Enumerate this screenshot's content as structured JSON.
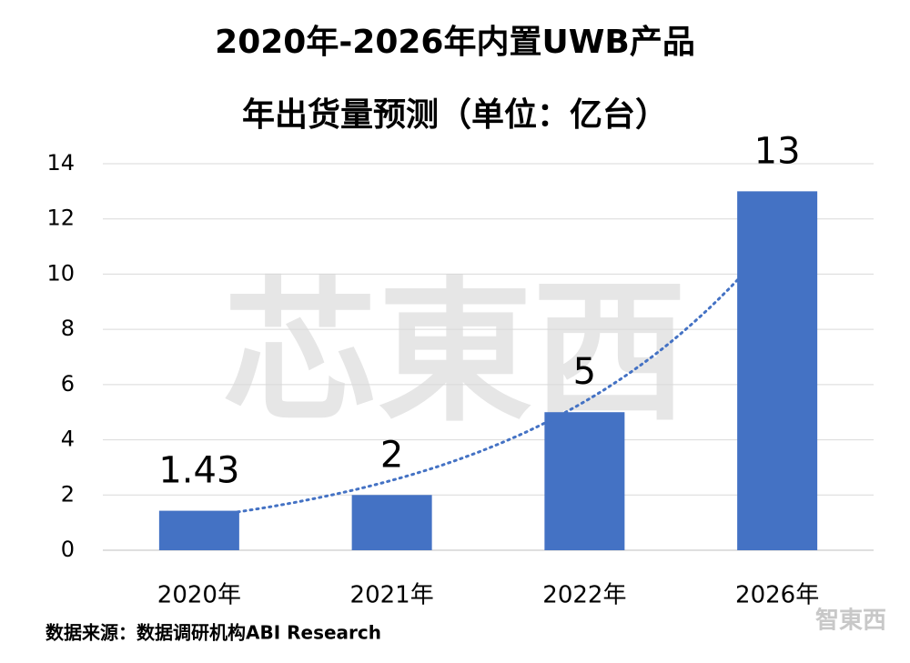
{
  "chart_data": {
    "type": "bar",
    "title_lines": [
      "2020年-2026年内置UWB产品",
      "年出货量预测（单位：亿台）"
    ],
    "categories": [
      "2020年",
      "2021年",
      "2022年",
      "2026年"
    ],
    "values": [
      1.43,
      2,
      5,
      13
    ],
    "color": "#4472c4",
    "trendline": "exponential",
    "ylim": [
      0,
      14
    ],
    "yticks": [
      0,
      2,
      4,
      6,
      8,
      10,
      12,
      14
    ],
    "grid": true,
    "source": "数据来源：数据调研机构ABI Research",
    "watermark": "芯東西",
    "logo": "智東西"
  }
}
